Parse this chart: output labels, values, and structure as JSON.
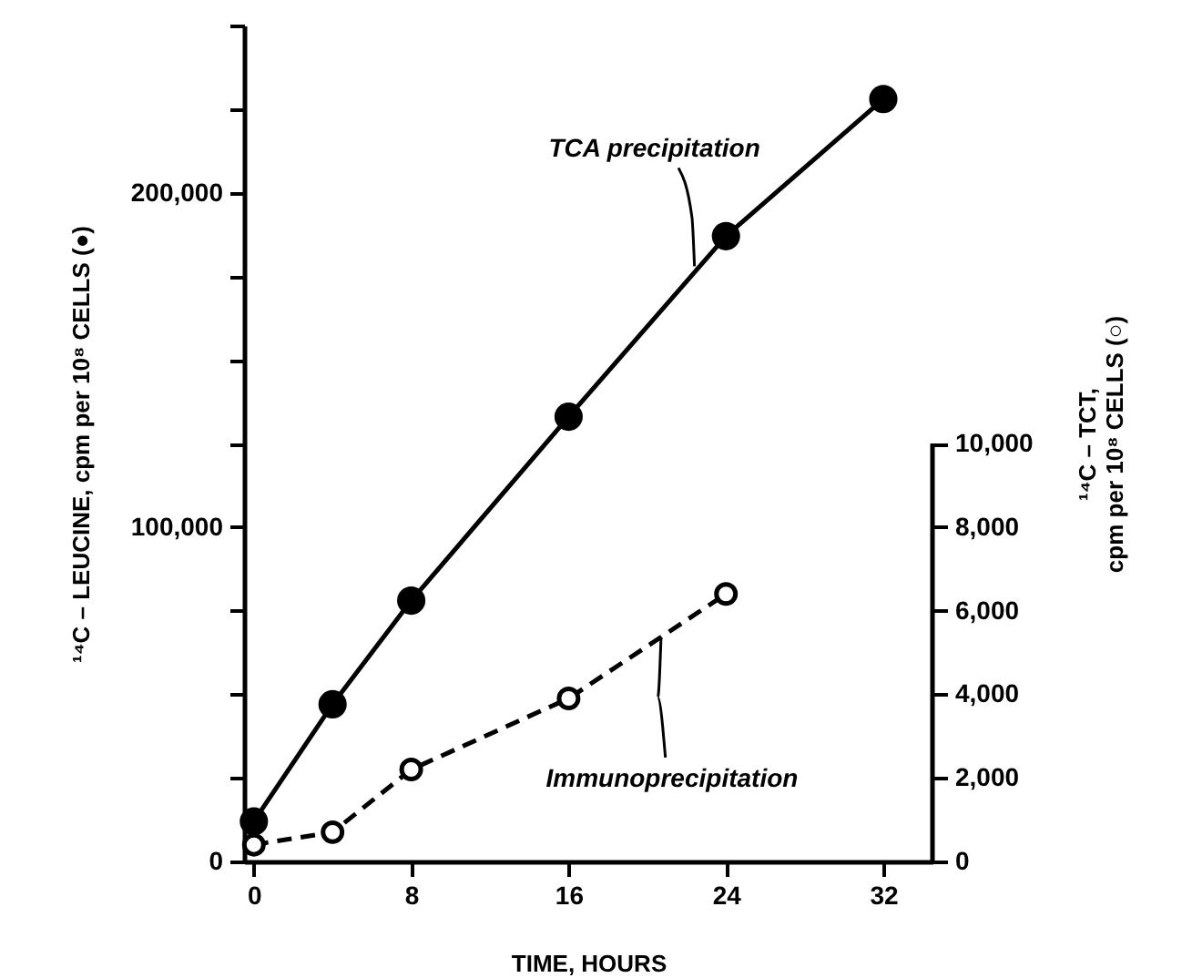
{
  "chart_data": {
    "type": "line",
    "xlabel": "TIME, HOURS",
    "ylabel": "¹⁴C – LEUCINE, cpm per 10⁸ CELLS (●)",
    "y2label": "¹⁴C – TCT,\ncpm per 10⁸ CELLS (○)",
    "x": [
      0,
      4,
      8,
      16,
      24,
      32
    ],
    "series": [
      {
        "color": "#000000",
        "line_style": "solid",
        "values": [
          12000,
          47000,
          78000,
          133000,
          187000,
          228000
        ]
      },
      {
        "color": "#000000",
        "line_style": "dashed",
        "axis": "y2",
        "x": [
          0,
          4,
          8,
          16,
          24
        ],
        "values": [
          400,
          700,
          2200,
          3900,
          6400
        ]
      }
    ],
    "marker": "circle",
    "xlim": [
      -0.5,
      34.5
    ],
    "xticks": [
      0,
      8,
      16,
      24,
      32
    ],
    "ylim": [
      0,
      250000
    ],
    "yticks": [
      {
        "value": 0,
        "label": "0"
      },
      {
        "value": 25000,
        "label": null
      },
      {
        "value": 50000,
        "label": null
      },
      {
        "value": 75000,
        "label": null
      },
      {
        "value": 100000,
        "label": "100,000"
      },
      {
        "value": 125000,
        "label": null
      },
      {
        "value": 150000,
        "label": null
      },
      {
        "value": 175000,
        "label": null
      },
      {
        "value": 200000,
        "label": "200,000"
      },
      {
        "value": 225000,
        "label": null
      },
      {
        "value": 250000,
        "label": null
      }
    ],
    "y2lim": [
      0,
      20000
    ],
    "y2ticks": [
      {
        "value": 0,
        "label": "0"
      },
      {
        "value": 2000,
        "label": "2,000"
      },
      {
        "value": 4000,
        "label": "4,000"
      },
      {
        "value": 6000,
        "label": "6,000"
      },
      {
        "value": 8000,
        "label": "8,000"
      },
      {
        "value": 10000,
        "label": "10,000"
      }
    ],
    "annotations": [
      {
        "text": "TCA precipitation",
        "x": 22.4,
        "y": 178000
      },
      {
        "text": "Immunoprecipitation",
        "x": 20.7,
        "y": 67000
      }
    ]
  }
}
